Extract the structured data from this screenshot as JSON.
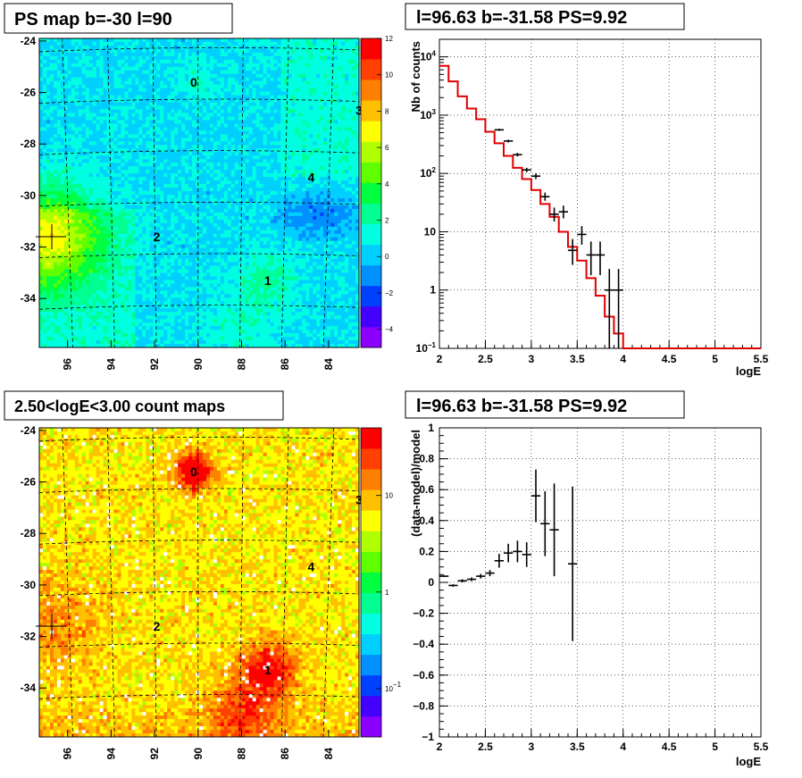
{
  "chart_data": [
    {
      "type": "heatmap",
      "title": "PS map b=-30 l=90",
      "x_ticks": [
        "96",
        "94",
        "92",
        "90",
        "88",
        "86",
        "84"
      ],
      "y_ticks": [
        "-24",
        "-26",
        "-28",
        "-30",
        "-32",
        "-34"
      ],
      "colorbar_ticks": [
        "12",
        "10",
        "8",
        "6",
        "4",
        "2",
        "0",
        "−2",
        "−4"
      ],
      "colorbar_range": [
        -5,
        12
      ],
      "palette": [
        "#8b00ff",
        "#4400ff",
        "#0040ff",
        "#0090ff",
        "#00d0ff",
        "#00ffe0",
        "#00ff90",
        "#00ff40",
        "#60ff00",
        "#b0ff00",
        "#ffff00",
        "#ffc000",
        "#ff8000",
        "#ff4000",
        "#ff0000"
      ],
      "sources": [
        {
          "label": "0",
          "lon": 90.2,
          "lat": -25.6
        },
        {
          "label": "1",
          "lon": 86.8,
          "lat": -33.3
        },
        {
          "label": "2",
          "lon": 91.9,
          "lat": -31.6
        },
        {
          "label": "3",
          "lon": 82.6,
          "lat": -26.7
        },
        {
          "label": "4",
          "lon": 84.8,
          "lat": -29.3
        }
      ]
    },
    {
      "type": "line",
      "title": "l=96.63 b=-31.58 PS=9.92",
      "xlabel": "logE",
      "ylabel": "Nb of counts",
      "y_log": true,
      "xlim": [
        2,
        5.5
      ],
      "ylim": [
        0.1,
        20000
      ],
      "x_ticks": [
        "2",
        "2.5",
        "3",
        "3.5",
        "4",
        "4.5",
        "5",
        "5.5"
      ],
      "y_ticks": [
        {
          "base": "10",
          "exp": "4"
        },
        {
          "base": "10",
          "exp": "3"
        },
        {
          "base": "10",
          "exp": "2"
        },
        {
          "base": "10",
          "exp": ""
        },
        {
          "base": "1",
          "exp": ""
        },
        {
          "base": "10",
          "exp": "−1"
        }
      ],
      "series": [
        {
          "kind": "model-step",
          "color": "#e00000",
          "bin_edges": [
            2.0,
            2.1,
            2.2,
            2.3,
            2.4,
            2.5,
            2.6,
            2.7,
            2.8,
            2.9,
            3.0,
            3.1,
            3.2,
            3.3,
            3.4,
            3.5,
            3.6,
            3.7,
            3.8,
            3.9,
            4.0,
            4.1,
            5.5
          ],
          "values": [
            7000,
            3800,
            2100,
            1300,
            850,
            520,
            330,
            200,
            125,
            80,
            52,
            30,
            18,
            10,
            5.5,
            3.2,
            1.6,
            0.8,
            0.35,
            0.18,
            0.1,
            0.1
          ]
        },
        {
          "kind": "data-points",
          "color": "#000000",
          "x": [
            2.65,
            2.75,
            2.85,
            2.95,
            3.05,
            3.15,
            3.25,
            3.35,
            3.45,
            3.55,
            3.65,
            3.75,
            3.85,
            3.95
          ],
          "y": [
            560,
            360,
            210,
            115,
            90,
            40,
            20,
            22,
            4.8,
            9,
            4,
            4,
            1,
            1
          ],
          "y_lo": [
            540,
            340,
            195,
            105,
            80,
            34,
            15,
            17,
            2.7,
            6,
            1.8,
            1.8,
            0.1,
            0.1
          ],
          "y_hi": [
            585,
            380,
            225,
            125,
            100,
            47,
            26,
            28,
            7.5,
            12.5,
            6.8,
            6.8,
            2.3,
            2.3
          ]
        }
      ]
    },
    {
      "type": "heatmap",
      "title": "2.50<logE<3.00 count maps",
      "x_ticks": [
        "96",
        "94",
        "92",
        "90",
        "88",
        "86",
        "84"
      ],
      "y_ticks": [
        "-24",
        "-26",
        "-28",
        "-30",
        "-32",
        "-34"
      ],
      "colorbar_ticks": [
        {
          "base": "10",
          "exp": ""
        },
        {
          "base": "1",
          "exp": ""
        },
        {
          "base": "10",
          "exp": "−1"
        }
      ],
      "colorbar_range_log": [
        -1.5,
        1.7
      ],
      "palette": [
        "#8b00ff",
        "#4400ff",
        "#0040ff",
        "#0090ff",
        "#00d0ff",
        "#00ffe0",
        "#00ff90",
        "#00ff40",
        "#60ff00",
        "#b0ff00",
        "#ffff00",
        "#ffc000",
        "#ff8000",
        "#ff4000",
        "#ff0000"
      ],
      "sources": [
        {
          "label": "0",
          "lon": 90.2,
          "lat": -25.6
        },
        {
          "label": "1",
          "lon": 86.8,
          "lat": -33.3
        },
        {
          "label": "2",
          "lon": 91.9,
          "lat": -31.6
        },
        {
          "label": "3",
          "lon": 82.6,
          "lat": -26.7
        },
        {
          "label": "4",
          "lon": 84.8,
          "lat": -29.3
        }
      ]
    },
    {
      "type": "scatter",
      "title": "l=96.63 b=-31.58 PS=9.92",
      "xlabel": "logE",
      "ylabel": "(data-model)/model",
      "xlim": [
        2,
        5.5
      ],
      "ylim": [
        -1,
        1
      ],
      "x_ticks": [
        "2",
        "2.5",
        "3",
        "3.5",
        "4",
        "4.5",
        "5",
        "5.5"
      ],
      "y_ticks": [
        "1",
        "0.8",
        "0.6",
        "0.4",
        "0.2",
        "0",
        "−0.2",
        "−0.4",
        "−0.6",
        "−0.8",
        "−1"
      ],
      "series": [
        {
          "kind": "residuals",
          "color": "#000000",
          "x": [
            2.05,
            2.15,
            2.25,
            2.35,
            2.45,
            2.55,
            2.65,
            2.75,
            2.85,
            2.95,
            3.05,
            3.15,
            3.25,
            3.45
          ],
          "y": [
            0.04,
            -0.02,
            0.01,
            0.02,
            0.04,
            0.06,
            0.14,
            0.19,
            0.2,
            0.18,
            0.56,
            0.38,
            0.34,
            0.12
          ],
          "y_err": [
            0.005,
            0.008,
            0.01,
            0.012,
            0.015,
            0.02,
            0.045,
            0.06,
            0.07,
            0.08,
            0.17,
            0.21,
            0.3,
            0.5
          ]
        }
      ]
    }
  ]
}
